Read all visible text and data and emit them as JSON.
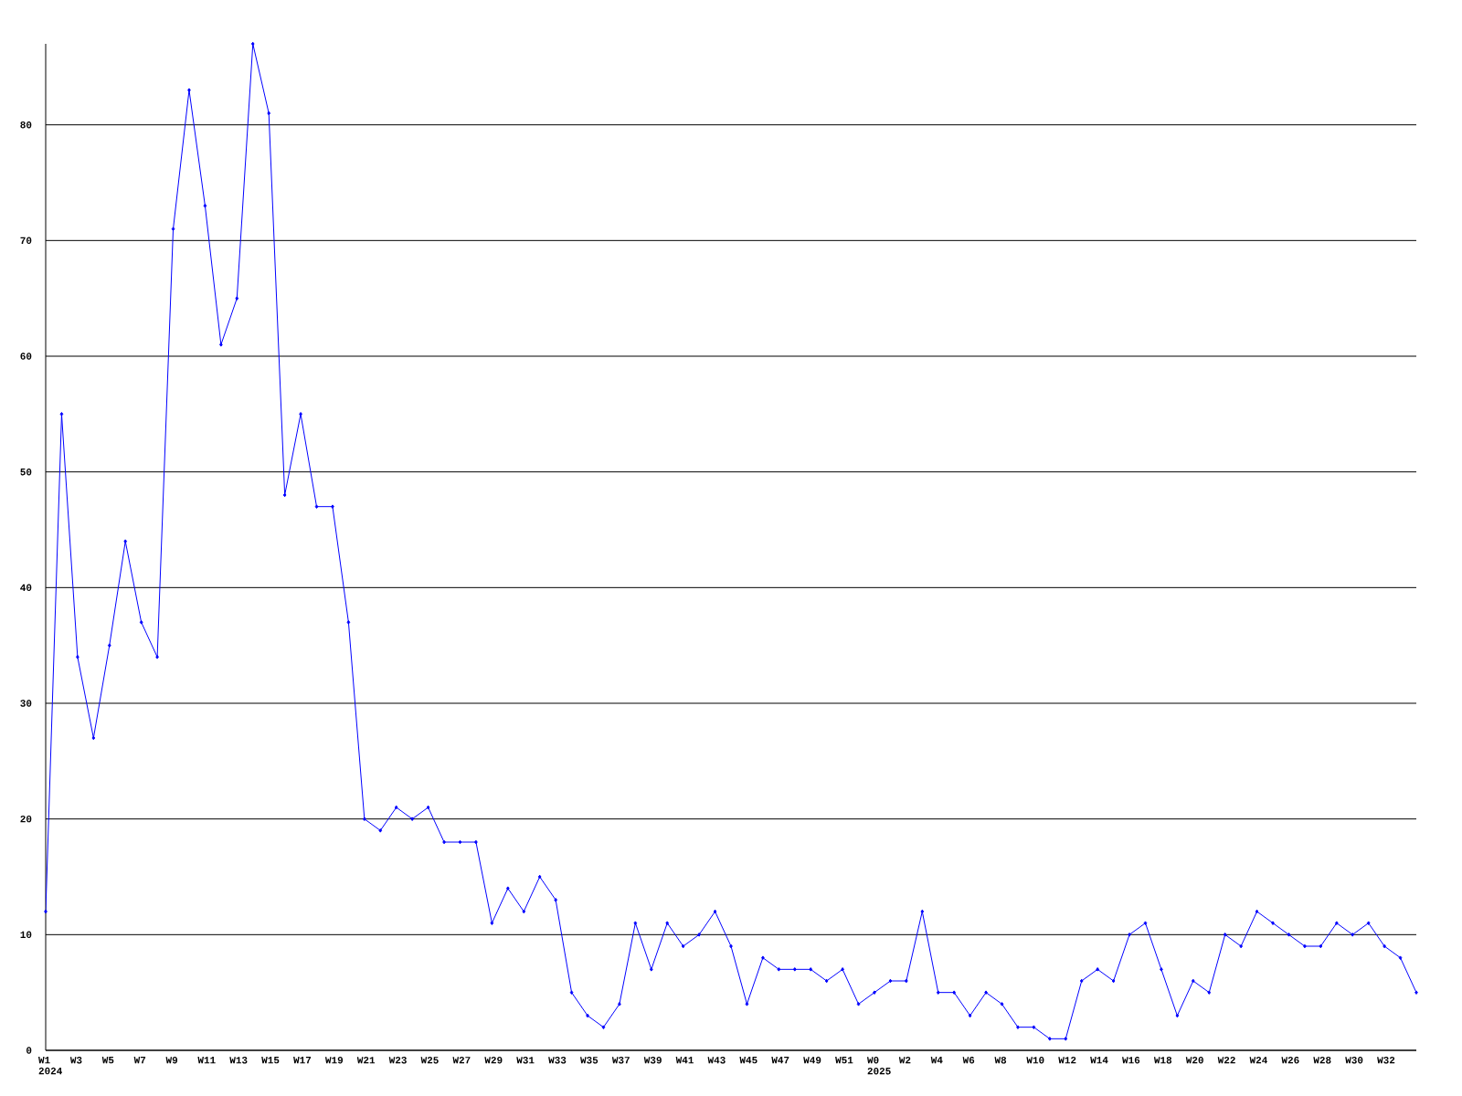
{
  "chart_data": {
    "type": "line",
    "categories": [
      "W1 2024",
      null,
      "W3",
      null,
      "W5",
      null,
      "W7",
      null,
      "W9",
      null,
      "W11",
      null,
      "W13",
      null,
      "W15",
      null,
      "W17",
      null,
      "W19",
      null,
      "W21",
      null,
      "W23",
      null,
      "W25",
      null,
      "W27",
      null,
      "W29",
      null,
      "W31",
      null,
      "W33",
      null,
      "W35",
      null,
      "W37",
      null,
      "W39",
      null,
      "W41",
      null,
      "W43",
      null,
      "W45",
      null,
      "W47",
      null,
      "W49",
      null,
      "W51",
      null,
      "W0 2025",
      null,
      "W2",
      null,
      "W4",
      null,
      "W6",
      null,
      "W8",
      null,
      "W10",
      null,
      "W12",
      null,
      "W14",
      null,
      "W16",
      null,
      "W18",
      null,
      "W20",
      null,
      "W22",
      null,
      "W24",
      null,
      "W26",
      null,
      "W28",
      null,
      "W30",
      null,
      "W32",
      null,
      null
    ],
    "series": [
      {
        "color": "#0000ff",
        "values": [
          12,
          55,
          34,
          27,
          35,
          44,
          37,
          34,
          71,
          83,
          73,
          61,
          65,
          87,
          81,
          48,
          55,
          47,
          47,
          37,
          20,
          19,
          21,
          20,
          21,
          18,
          18,
          18,
          11,
          14,
          12,
          15,
          13,
          5,
          3,
          2,
          4,
          11,
          7,
          11,
          9,
          10,
          12,
          9,
          4,
          8,
          7,
          7,
          7,
          6,
          7,
          4,
          5,
          6,
          6,
          12,
          5,
          5,
          3,
          5,
          4,
          2,
          2,
          1,
          1,
          6,
          7,
          6,
          10,
          11,
          7,
          3,
          6,
          5,
          10,
          9,
          12,
          11,
          10,
          9,
          9,
          11,
          10,
          11,
          9,
          8,
          5
        ]
      }
    ],
    "ylim": [
      0,
      87
    ],
    "yticks": [
      0,
      10,
      20,
      30,
      40,
      50,
      60,
      70,
      80
    ],
    "grid": "y",
    "marker": "diamond",
    "line_style": "solid"
  }
}
